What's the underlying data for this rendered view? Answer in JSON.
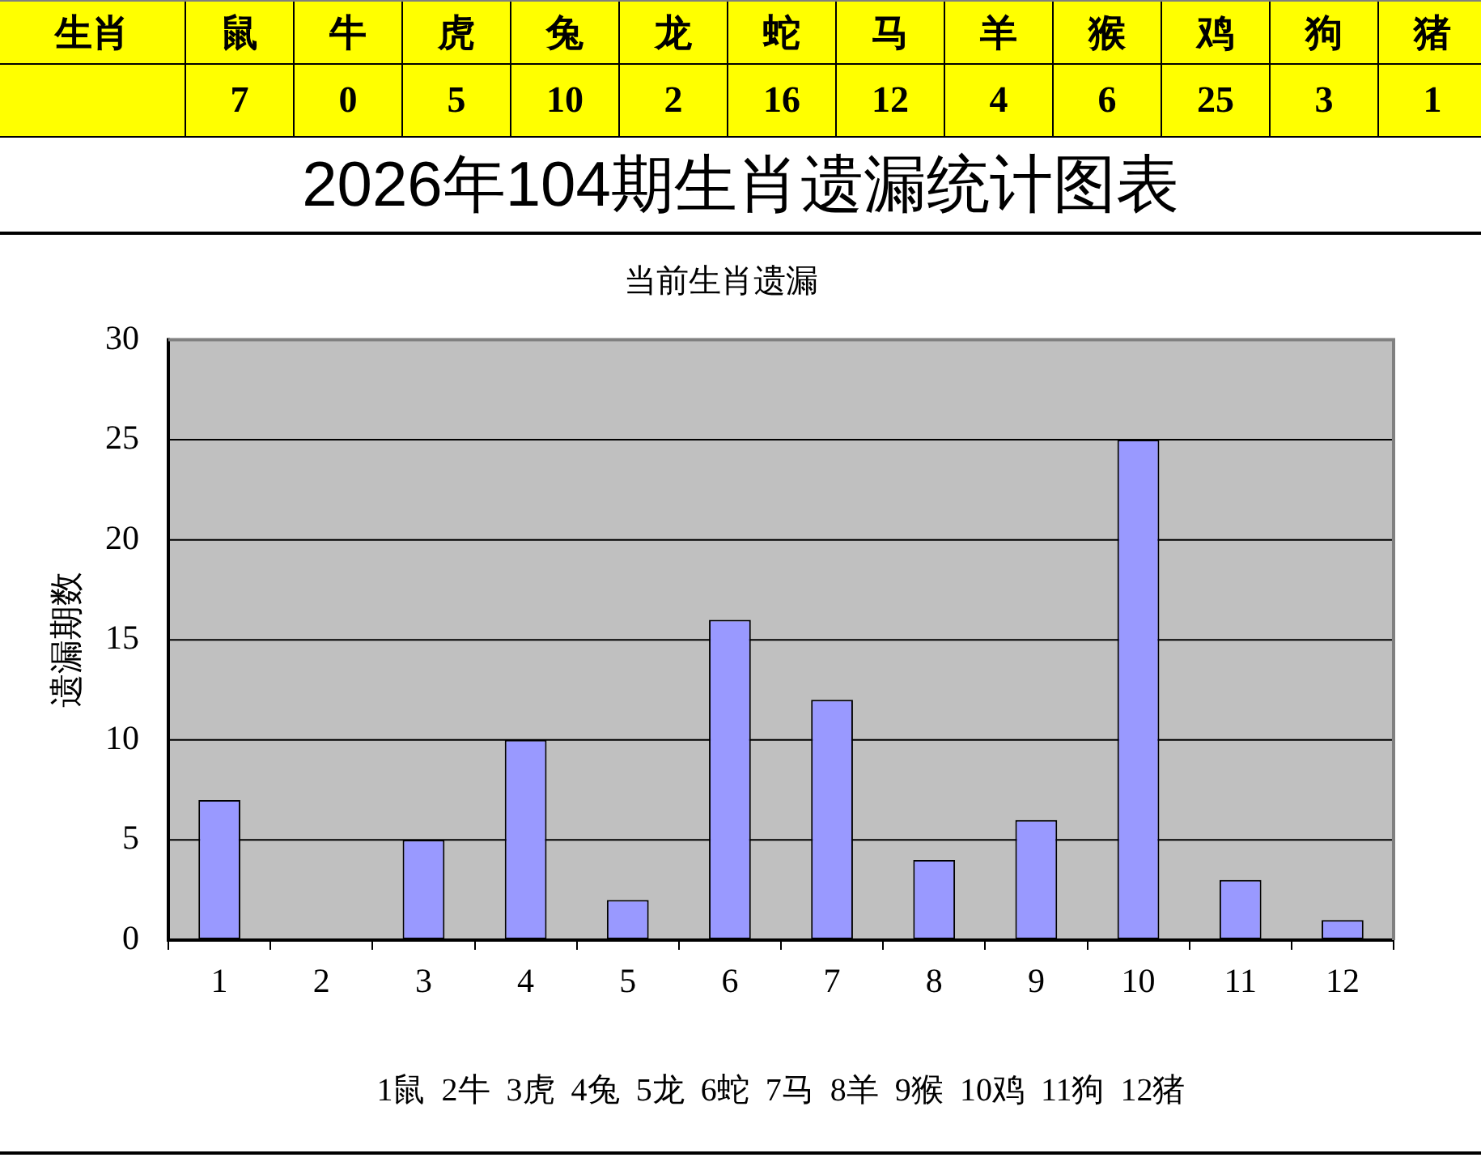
{
  "chart_data": [
    {
      "type": "other",
      "xlabel": "生肖",
      "categories": [
        "鼠",
        "牛",
        "虎",
        "兔",
        "龙",
        "蛇",
        "马",
        "羊",
        "猴",
        "鸡",
        "狗",
        "猪"
      ],
      "values": [
        7,
        0,
        5,
        10,
        2,
        16,
        12,
        4,
        6,
        25,
        3,
        1
      ],
      "data_labels": true,
      "color": "#ffff00"
    },
    {
      "type": "bar",
      "title": "2026年104期生肖遗漏统计图表",
      "subtitle": "当前生肖遗漏",
      "xlabel": "1鼠  2牛  3虎  4兔  5龙  6蛇  7马  8羊  9猴  10鸡  11狗  12猪",
      "ylabel": "遗漏期数",
      "categories": [
        "1",
        "2",
        "3",
        "4",
        "5",
        "6",
        "7",
        "8",
        "9",
        "10",
        "11",
        "12"
      ],
      "values": [
        7,
        0,
        5,
        10,
        2,
        16,
        12,
        4,
        6,
        25,
        3,
        1
      ],
      "color": "#9999ff",
      "ylim": [
        0,
        30
      ],
      "yticks": [
        0,
        5,
        10,
        15,
        20,
        25,
        30
      ],
      "grid": "y"
    }
  ]
}
